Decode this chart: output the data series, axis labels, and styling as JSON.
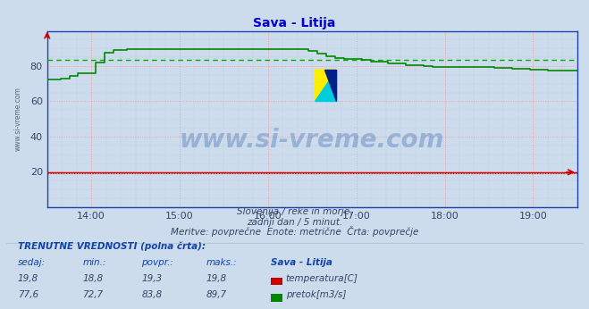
{
  "title": "Sava - Litija",
  "bg_color": "#ccdcec",
  "plot_bg_color": "#ccdcec",
  "grid_color_major": "#ff9999",
  "xlabel": "",
  "ylabel": "",
  "xlim_hours": [
    13.5,
    19.5
  ],
  "ylim": [
    0,
    100
  ],
  "yticks": [
    20,
    40,
    60,
    80
  ],
  "xtick_labels": [
    "14:00",
    "15:00",
    "16:00",
    "17:00",
    "18:00",
    "19:00"
  ],
  "xtick_positions": [
    14.0,
    15.0,
    16.0,
    17.0,
    18.0,
    19.0
  ],
  "watermark_text": "www.si-vreme.com",
  "subtitle1": "Slovenija / reke in morje.",
  "subtitle2": "zadnji dan / 5 minut.",
  "subtitle3": "Meritve: povprečne  Enote: metrične  Črta: povprečje",
  "legend_title": "TRENUTNE VREDNOSTI (polna črta):",
  "legend_headers": [
    "sedaj:",
    "min.:",
    "povpr.:",
    "maks.:",
    "Sava - Litija"
  ],
  "temp_values": [
    "19,8",
    "18,8",
    "19,3",
    "19,8"
  ],
  "flow_values": [
    "77,6",
    "72,7",
    "83,8",
    "89,7"
  ],
  "temp_label": "temperatura[C]",
  "flow_label": "pretok[m3/s]",
  "temp_color": "#cc0000",
  "flow_color": "#008800",
  "avg_flow_color": "#00aa00",
  "temp_avg": 19.3,
  "flow_avg": 83.8,
  "axis_color": "#2244aa",
  "tick_color": "#334466",
  "watermark_color": "#2255aa",
  "title_color": "#0000cc"
}
